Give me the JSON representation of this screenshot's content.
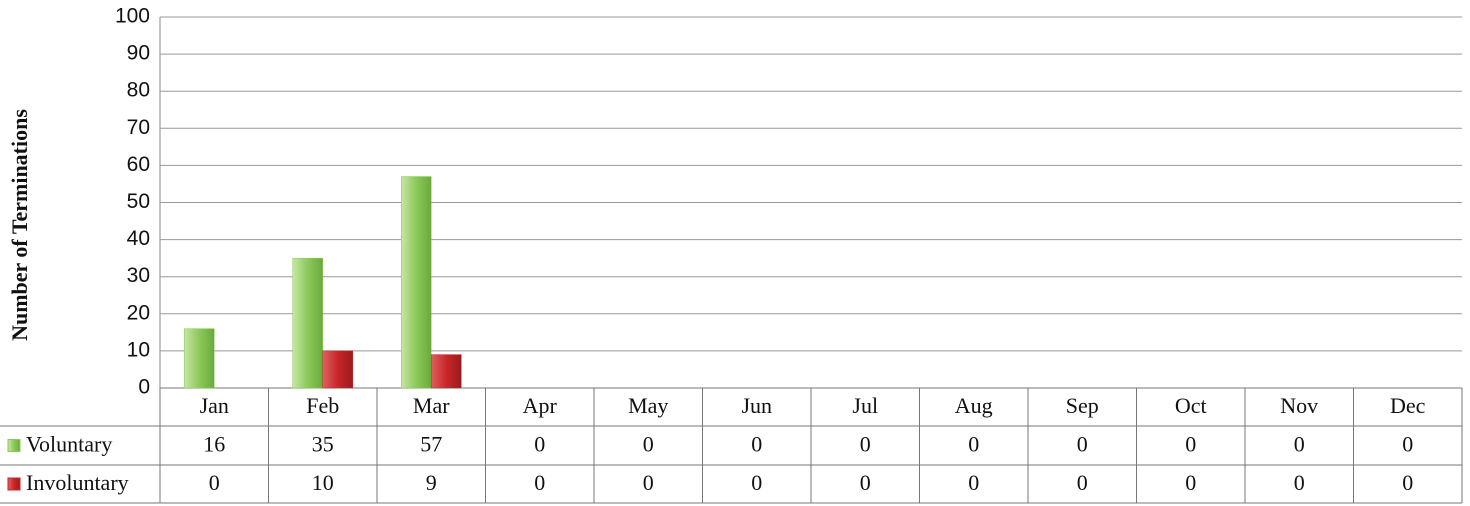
{
  "chart_data": {
    "type": "bar",
    "y_label": "Number of Terminations",
    "categories": [
      "Jan",
      "Feb",
      "Mar",
      "Apr",
      "May",
      "Jun",
      "Jul",
      "Aug",
      "Sep",
      "Oct",
      "Nov",
      "Dec"
    ],
    "series": [
      {
        "name": "Voluntary",
        "color": "#8cc95a",
        "values": [
          16,
          35,
          57,
          0,
          0,
          0,
          0,
          0,
          0,
          0,
          0,
          0
        ]
      },
      {
        "name": "Involuntary",
        "color": "#c9262a",
        "values": [
          0,
          10,
          9,
          0,
          0,
          0,
          0,
          0,
          0,
          0,
          0,
          0
        ]
      }
    ],
    "ylim": [
      0,
      100
    ],
    "yticks": [
      0,
      10,
      20,
      30,
      40,
      50,
      60,
      70,
      80,
      90,
      100
    ],
    "grid": true
  }
}
